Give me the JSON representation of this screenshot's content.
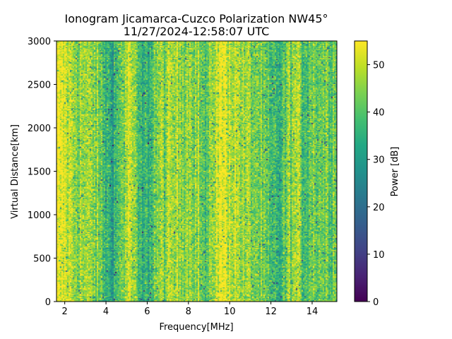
{
  "chart_data": {
    "type": "heatmap",
    "title_line1": "Ionogram Jicamarca-Cuzco Polarization NW45°",
    "title_line2": "11/27/2024-12:58:07 UTC",
    "xlabel": "Frequency[MHz]",
    "ylabel": "Virtual Distance[km]",
    "xlim": [
      1.6,
      15.2
    ],
    "ylim": [
      0,
      3000
    ],
    "xticks": [
      2,
      4,
      6,
      8,
      10,
      12,
      14
    ],
    "yticks": [
      0,
      500,
      1000,
      1500,
      2000,
      2500,
      3000
    ],
    "colorbar": {
      "label": "Power [dB]",
      "range": [
        0,
        55
      ],
      "ticks": [
        0,
        10,
        20,
        30,
        40,
        50
      ],
      "colormap": "viridis"
    },
    "band_profile": {
      "description_units": "mean power in dB versus frequency in MHz",
      "frequencies": [
        1.6,
        2.0,
        2.5,
        3.0,
        3.5,
        3.9,
        4.2,
        4.5,
        4.8,
        5.2,
        5.5,
        5.8,
        6.1,
        6.5,
        7.0,
        7.5,
        8.0,
        8.5,
        8.8,
        9.0,
        9.3,
        9.7,
        10.2,
        10.8,
        11.5,
        12.0,
        12.5,
        12.9,
        13.3,
        13.6,
        14.0,
        14.5,
        15.2
      ],
      "power_db": [
        54,
        52,
        47,
        46,
        45,
        39,
        34,
        36,
        44,
        52,
        39,
        33,
        37,
        44,
        46,
        47,
        48,
        46,
        38,
        40,
        51,
        54,
        50,
        46,
        43,
        36,
        36,
        45,
        47,
        39,
        44,
        43,
        44
      ]
    }
  }
}
